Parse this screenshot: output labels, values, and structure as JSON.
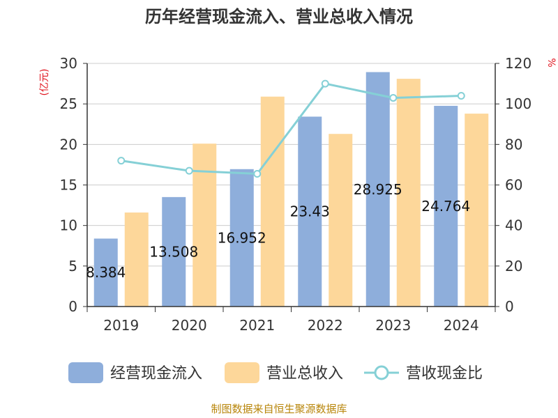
{
  "chart_data": {
    "type": "bar",
    "title": "历年经营现金流入、营业总收入情况",
    "categories": [
      "2019",
      "2020",
      "2021",
      "2022",
      "2023",
      "2024"
    ],
    "series": [
      {
        "name": "经营现金流入",
        "axis": "left",
        "kind": "bar",
        "color": "#8eaedb",
        "values": [
          8.384,
          13.508,
          16.952,
          23.43,
          28.925,
          24.764
        ],
        "labels": [
          "8.384",
          "13.508",
          "16.952",
          "23.43",
          "28.925",
          "24.764"
        ]
      },
      {
        "name": "营业总收入",
        "axis": "left",
        "kind": "bar",
        "color": "#fdd79a",
        "values": [
          11.6,
          20.1,
          25.9,
          21.3,
          28.1,
          23.8
        ]
      },
      {
        "name": "营收现金比",
        "axis": "right",
        "kind": "line",
        "color": "#85d0d6",
        "values": [
          72,
          67,
          65.5,
          110,
          103,
          104
        ]
      }
    ],
    "y_left": {
      "label": "(亿元)",
      "min": 0,
      "max": 30,
      "ticks": [
        0,
        5,
        10,
        15,
        20,
        25,
        30
      ]
    },
    "y_right": {
      "label": "%",
      "min": 0,
      "max": 120,
      "ticks": [
        0,
        20,
        40,
        60,
        80,
        100,
        120
      ]
    },
    "grid": true,
    "legend": "bottom"
  },
  "source": "制图数据来自恒生聚源数据库"
}
